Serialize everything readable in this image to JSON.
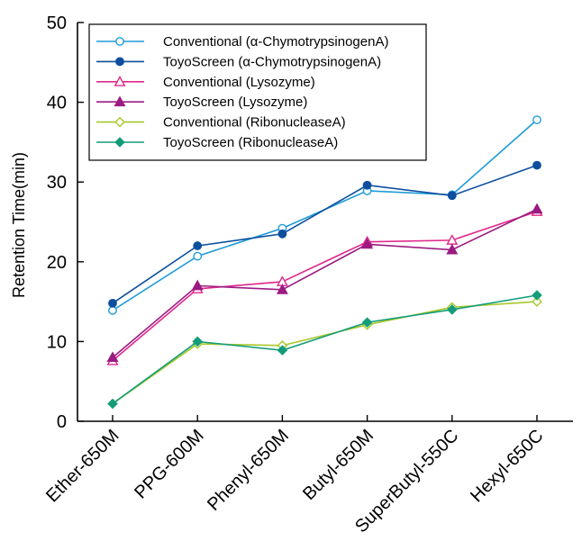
{
  "chart_data": {
    "type": "line",
    "title": "",
    "xlabel": "",
    "ylabel": "Retention Time(min)",
    "ylim": [
      0,
      50
    ],
    "yticks": [
      0,
      10,
      20,
      30,
      40,
      50
    ],
    "grid": false,
    "legend_position": "top-left",
    "categories": [
      "Ether-650M",
      "PPG-600M",
      "Phenyl-650M",
      "Butyl-650M",
      "SuperButyl-550C",
      "Hexyl-650C"
    ],
    "series": [
      {
        "name": "Conventional (α-ChymotrypsinogenA)",
        "values": [
          13.9,
          20.7,
          24.2,
          28.9,
          28.4,
          37.8
        ],
        "color": "#1f9bd7",
        "marker": "circle",
        "filled": false
      },
      {
        "name": "ToyoScreen (α-ChymotrypsinogenA)",
        "values": [
          14.8,
          22.0,
          23.5,
          29.6,
          28.3,
          32.1
        ],
        "color": "#0d4f9e",
        "marker": "circle",
        "filled": true
      },
      {
        "name": "Conventional (Lysozyme)",
        "values": [
          7.6,
          16.6,
          17.5,
          22.5,
          22.7,
          26.3
        ],
        "color": "#e0288a",
        "marker": "triangle",
        "filled": false
      },
      {
        "name": "ToyoScreen (Lysozyme)",
        "values": [
          8.0,
          17.0,
          16.5,
          22.2,
          21.5,
          26.6
        ],
        "color": "#9b1b82",
        "marker": "triangle",
        "filled": true
      },
      {
        "name": "Conventional (RibonucleaseA)",
        "values": [
          2.2,
          9.7,
          9.5,
          12.1,
          14.3,
          15.0
        ],
        "color": "#a8c82a",
        "marker": "diamond",
        "filled": false
      },
      {
        "name": "ToyoScreen (RibonucleaseA)",
        "values": [
          2.2,
          10.0,
          8.9,
          12.4,
          14.0,
          15.8
        ],
        "color": "#139c7a",
        "marker": "diamond",
        "filled": true
      }
    ]
  }
}
